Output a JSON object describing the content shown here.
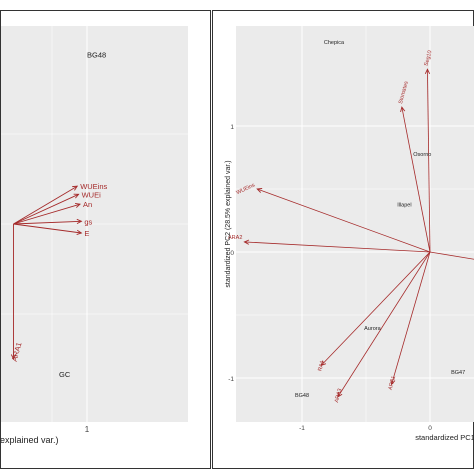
{
  "colors": {
    "arrow": "#a52a2a",
    "panel_bg": "#ebebeb",
    "grid": "#ffffff",
    "text": "#222222",
    "frame": "#333333"
  },
  "chart_data": [
    {
      "type": "scatter",
      "subtype": "pca-biplot",
      "ylabel": "",
      "xlabel": "explained var.)",
      "x_ticks": [
        1
      ],
      "origin": [
        -0.05,
        0.0
      ],
      "grid": true,
      "loadings": [
        {
          "name": "WUEins",
          "x": 0.86,
          "y": 0.42
        },
        {
          "name": "WUEi",
          "x": 0.88,
          "y": 0.33
        },
        {
          "name": "An",
          "x": 0.9,
          "y": 0.22
        },
        {
          "name": "gs",
          "x": 0.92,
          "y": 0.03
        },
        {
          "name": "E",
          "x": 0.92,
          "y": -0.1
        },
        {
          "name": "ARA1",
          "x": -0.05,
          "y": -1.5
        }
      ],
      "points": [
        {
          "name": "BG48",
          "x": 1.0,
          "y": 1.85
        },
        {
          "name": "GC",
          "x": 0.6,
          "y": -1.7
        }
      ]
    },
    {
      "type": "scatter",
      "subtype": "pca-biplot",
      "xlabel": "standardized PC1",
      "ylabel": "standardized PC2 (28.5% explained var.)",
      "x_ticks": [
        -1,
        0
      ],
      "y_ticks": [
        1,
        0,
        -1
      ],
      "x_tick_labels": [
        "-1",
        "0"
      ],
      "y_tick_labels": [
        "1",
        "0",
        "-1"
      ],
      "xlim": [
        -1.4,
        0.35
      ],
      "ylim": [
        -1.3,
        1.8
      ],
      "grid": true,
      "loadings": [
        {
          "name": "Seg10",
          "x": -0.02,
          "y": 1.45
        },
        {
          "name": "Stomates",
          "x": -0.22,
          "y": 1.15
        },
        {
          "name": "WUEins",
          "x": -1.35,
          "y": 0.5
        },
        {
          "name": "ARA2",
          "x": -1.45,
          "y": 0.08
        },
        {
          "name": "RA1",
          "x": -0.85,
          "y": -0.9
        },
        {
          "name": "ARA3",
          "x": -0.72,
          "y": -1.15
        },
        {
          "name": "ARA1",
          "x": -0.3,
          "y": -1.05
        },
        {
          "name": "E",
          "x": 0.6,
          "y": -0.1
        }
      ],
      "points": [
        {
          "name": "Chepica",
          "x": -0.75,
          "y": 1.65
        },
        {
          "name": "Osorno",
          "x": -0.06,
          "y": 0.76
        },
        {
          "name": "Illapel",
          "x": -0.2,
          "y": 0.36
        },
        {
          "name": "Aurora",
          "x": -0.45,
          "y": -0.62
        },
        {
          "name": "BG48",
          "x": -1.0,
          "y": -1.15
        },
        {
          "name": "BG47",
          "x": 0.22,
          "y": -0.97
        }
      ]
    }
  ]
}
